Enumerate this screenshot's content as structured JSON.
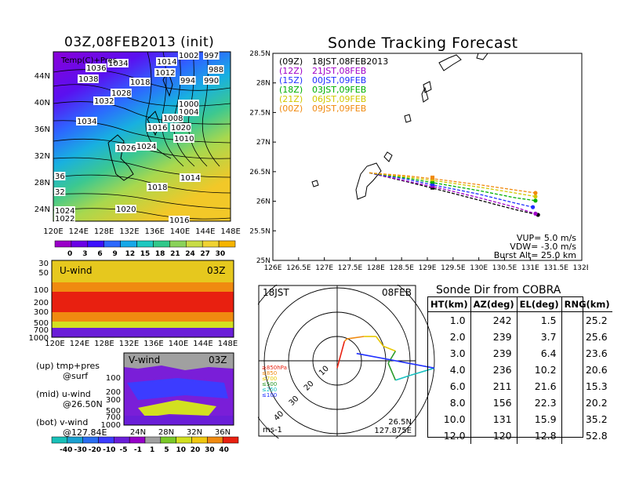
{
  "page": {
    "map_title": "03Z,08FEB2013 (init)",
    "map_subtitle": "Temp(C)+Pres",
    "track_title": "Sonde Tracking Forecast",
    "table_title": "Sonde Dir from COBRA"
  },
  "pressure_labels": [
    "1036",
    "1034",
    "1038",
    "1032",
    "1028",
    "1018",
    "1012",
    "1014",
    "1002",
    "997",
    "988",
    "990",
    "994",
    "1000",
    "1004",
    "1008",
    "1016",
    "1020",
    "1010",
    "1024",
    "1034",
    "1026",
    "36",
    "32",
    "1018",
    "1014",
    "1020",
    "1016",
    "1024",
    "1022"
  ],
  "map_lon_ticks": [
    "120E",
    "124E",
    "128E",
    "132E",
    "136E",
    "140E",
    "144E",
    "148E"
  ],
  "map_lat_ticks": [
    "44N",
    "40N",
    "36N",
    "32N",
    "28N",
    "24N"
  ],
  "temp_colorbar": {
    "labels": [
      "0",
      "3",
      "6",
      "9",
      "12",
      "15",
      "18",
      "21",
      "24",
      "27",
      "30"
    ],
    "colors": [
      "#9a00c8",
      "#6a00e6",
      "#3c10ff",
      "#2c68ff",
      "#16a8e8",
      "#1ec8c0",
      "#30c88a",
      "#8ad25a",
      "#c8dc46",
      "#f0d232",
      "#f5b400"
    ]
  },
  "uwind": {
    "label": "U-wind",
    "time": "03Z",
    "y_ticks": [
      "30",
      "50",
      "100",
      "200",
      "300",
      "500",
      "700",
      "1000"
    ],
    "x_ticks": [
      "120E",
      "124E",
      "128E",
      "132E",
      "136E",
      "140E",
      "144E",
      "148E"
    ]
  },
  "vwind": {
    "label": "V-wind",
    "time": "03Z",
    "y_ticks": [
      "100",
      "200",
      "300",
      "500",
      "700",
      "1000"
    ],
    "x_ticks": [
      "24N",
      "28N",
      "32N",
      "36N"
    ]
  },
  "wind_colorbar": {
    "labels": [
      "-40",
      "-30",
      "-20",
      "-10",
      "-5",
      "-1",
      "1",
      "5",
      "10",
      "20",
      "30",
      "40"
    ],
    "colors": [
      "#18c0b8",
      "#1aa0d0",
      "#2a6ef0",
      "#3c3cff",
      "#6a1ed8",
      "#9600c8",
      "#a0a0a0",
      "#7ac828",
      "#d2e020",
      "#f0c810",
      "#f08a10",
      "#e82010"
    ]
  },
  "notes": [
    {
      "a": "(up)",
      "b": "tmp+pres",
      "c": "@surf"
    },
    {
      "a": "(mid)",
      "b": "u-wind",
      "c": "@26.50N"
    },
    {
      "a": "(bot)",
      "b": "v-wind",
      "c": "@127.84E"
    }
  ],
  "track_legend": [
    {
      "code": "(09Z)",
      "text": "18JST,08FEB2013",
      "color": "#000000"
    },
    {
      "code": "(12Z)",
      "text": "21JST,08FEB",
      "color": "#a000c8"
    },
    {
      "code": "(15Z)",
      "text": "00JST,09FEB",
      "color": "#2030ff"
    },
    {
      "code": "(18Z)",
      "text": "03JST,09FEB",
      "color": "#00b000"
    },
    {
      "code": "(21Z)",
      "text": "06JST,09FEB",
      "color": "#d2c800"
    },
    {
      "code": "(00Z)",
      "text": "09JST,09FEB",
      "color": "#f08a10"
    }
  ],
  "track_params": {
    "vup": "VUP=  5.0  m/s",
    "vdw": "VDW= -3.0  m/s",
    "burst": "Burst Alt= 25.0  km"
  },
  "chart_data": {
    "type": "line",
    "title": "Sonde Tracking Forecast",
    "xlim": [
      126,
      132
    ],
    "ylim": [
      25,
      28.5
    ],
    "x_ticks": [
      "126E",
      "126.5E",
      "127E",
      "127.5E",
      "128E",
      "128.5E",
      "129E",
      "129.5E",
      "130E",
      "130.5E",
      "131E",
      "131.5E",
      "132E"
    ],
    "y_ticks": [
      "25N",
      "25.5N",
      "26N",
      "26.5N",
      "27N",
      "27.5N",
      "28N",
      "28.5N"
    ],
    "launch": {
      "lon": 127.875,
      "lat": 26.5
    },
    "series": [
      {
        "name": "(09Z) 18JST,08FEB2013",
        "color": "#000000",
        "lon": [
          127.875,
          128.6,
          129.2,
          130.0,
          130.7,
          131.15
        ],
        "lat": [
          26.48,
          26.33,
          26.2,
          26.02,
          25.86,
          25.77
        ]
      },
      {
        "name": "(12Z) 21JST,08FEB",
        "color": "#a000c8",
        "lon": [
          127.875,
          128.6,
          129.2,
          130.0,
          130.7,
          131.1
        ],
        "lat": [
          26.48,
          26.34,
          26.23,
          26.06,
          25.9,
          25.79
        ]
      },
      {
        "name": "(15Z) 00JST,09FEB",
        "color": "#2030ff",
        "lon": [
          127.875,
          128.6,
          129.2,
          130.0,
          130.7,
          131.05
        ],
        "lat": [
          26.48,
          26.37,
          26.26,
          26.12,
          25.97,
          25.9
        ]
      },
      {
        "name": "(18Z) 03JST,09FEB",
        "color": "#00b000",
        "lon": [
          127.875,
          128.6,
          129.2,
          130.0,
          130.7,
          131.1
        ],
        "lat": [
          26.48,
          26.39,
          26.3,
          26.18,
          26.06,
          26.01
        ]
      },
      {
        "name": "(21Z) 06JST,09FEB",
        "color": "#d2c800",
        "lon": [
          127.875,
          128.6,
          129.2,
          130.0,
          130.7,
          131.1
        ],
        "lat": [
          26.48,
          26.41,
          26.34,
          26.24,
          26.14,
          26.08
        ]
      },
      {
        "name": "(00Z) 09JST,09FEB",
        "color": "#f08a10",
        "lon": [
          127.875,
          128.6,
          129.2,
          130.0,
          130.7,
          131.1
        ],
        "lat": [
          26.48,
          26.43,
          26.37,
          26.28,
          26.19,
          26.14
        ]
      }
    ]
  },
  "hodograph": {
    "time_label": "18JST",
    "date_label": "08FEB",
    "ring_labels": [
      "10",
      "20",
      "30",
      "40"
    ],
    "units": "ms-1",
    "position_lat": "26.5N",
    "position_lon": "127.875E",
    "legend": [
      {
        "text": "≥850hPa",
        "color": "#e82010"
      },
      {
        "text": "≤850",
        "color": "#f08a10"
      },
      {
        "text": "≤700",
        "color": "#e8c800"
      },
      {
        "text": "≤500",
        "color": "#2a9a2a"
      },
      {
        "text": "≤250",
        "color": "#18c0c0"
      },
      {
        "text": "≤100",
        "color": "#2030ff"
      }
    ],
    "trace": [
      {
        "u": 0,
        "v": -3,
        "color": "#e82010"
      },
      {
        "u": 3,
        "v": 8,
        "color": "#e82010"
      },
      {
        "u": 4,
        "v": 9,
        "color": "#f08a10"
      },
      {
        "u": 11,
        "v": 10,
        "color": "#f08a10"
      },
      {
        "u": 16,
        "v": 10,
        "color": "#e8c800"
      },
      {
        "u": 19,
        "v": 6,
        "color": "#e8c800"
      },
      {
        "u": 24,
        "v": 4,
        "color": "#e8c800"
      },
      {
        "u": 21,
        "v": -1,
        "color": "#2a9a2a"
      },
      {
        "u": 24,
        "v": -8,
        "color": "#2a9a2a"
      },
      {
        "u": 30,
        "v": -6,
        "color": "#18c0c0"
      },
      {
        "u": 40,
        "v": -3,
        "color": "#18c0c0"
      },
      {
        "u": 8,
        "v": 3,
        "color": "#2030ff"
      }
    ]
  },
  "sonde_table": {
    "headers": [
      "HT(km)",
      "AZ(deg)",
      "EL(deg)",
      "RNG(km)"
    ],
    "rows": [
      [
        "1.0",
        "242",
        "1.5",
        "25.2"
      ],
      [
        "2.0",
        "239",
        "3.7",
        "25.6"
      ],
      [
        "3.0",
        "239",
        "6.4",
        "23.6"
      ],
      [
        "4.0",
        "236",
        "10.2",
        "20.6"
      ],
      [
        "6.0",
        "211",
        "21.6",
        "15.3"
      ],
      [
        "8.0",
        "156",
        "22.3",
        "20.2"
      ],
      [
        "10.0",
        "131",
        "15.9",
        "35.2"
      ],
      [
        "12.0",
        "120",
        "12.8",
        "52.8"
      ]
    ]
  }
}
